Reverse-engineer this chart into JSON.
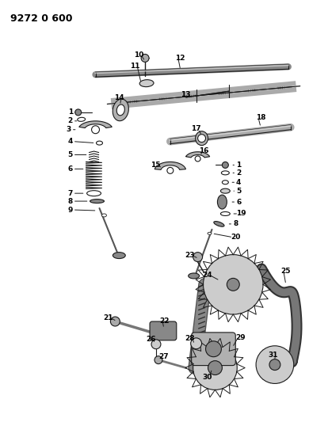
{
  "bg_color": "#ffffff",
  "lc": "#1a1a1a",
  "title": "9272 0 600",
  "figsize": [
    3.9,
    5.33
  ],
  "dpi": 100
}
